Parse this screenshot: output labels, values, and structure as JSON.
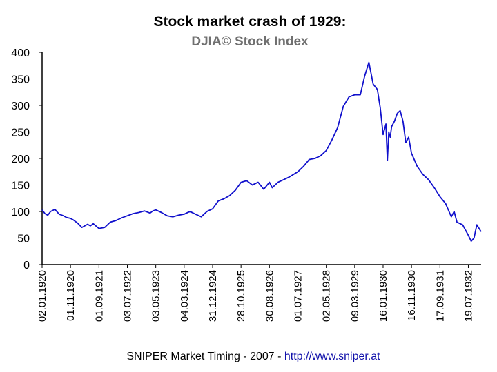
{
  "colors": {
    "line": "#1010cc",
    "subtitle": "#707070",
    "link": "#1010aa",
    "axis": "#000000"
  },
  "footer": {
    "text": "SNIPER Market Timing - 2007 - ",
    "link": "http://www.sniper.at"
  },
  "chart_data": {
    "type": "line",
    "title": "Stock market crash of 1929:",
    "subtitle": "DJIA©  Stock Index",
    "xlabel": "",
    "ylabel": "",
    "ylim": [
      0,
      400
    ],
    "yticks": [
      0,
      50,
      100,
      150,
      200,
      250,
      300,
      350,
      400
    ],
    "xlim": [
      0,
      15.45
    ],
    "xtick_labels": [
      "02.01.1920",
      "01.11.1920",
      "01.09.1921",
      "03.07.1922",
      "03.05.1923",
      "04.03.1924",
      "31.12.1924",
      "28.10.1925",
      "30.08.1926",
      "01.07.1927",
      "02.05.1928",
      "09.03.1929",
      "16.01.1930",
      "16.11.1930",
      "17.09.1931",
      "19.07.1932"
    ],
    "series": [
      {
        "name": "DJIA",
        "x": [
          0.0,
          0.1,
          0.2,
          0.3,
          0.45,
          0.6,
          0.75,
          0.85,
          1.0,
          1.1,
          1.25,
          1.4,
          1.6,
          1.7,
          1.8,
          2.0,
          2.2,
          2.4,
          2.6,
          2.8,
          3.0,
          3.2,
          3.4,
          3.6,
          3.8,
          3.9,
          4.0,
          4.2,
          4.4,
          4.6,
          4.8,
          5.0,
          5.2,
          5.4,
          5.6,
          5.8,
          6.0,
          6.2,
          6.4,
          6.6,
          6.8,
          7.0,
          7.2,
          7.4,
          7.6,
          7.8,
          8.0,
          8.1,
          8.3,
          8.5,
          8.7,
          9.0,
          9.2,
          9.4,
          9.6,
          9.8,
          10.0,
          10.2,
          10.4,
          10.6,
          10.8,
          11.0,
          11.2,
          11.35,
          11.5,
          11.65,
          11.8,
          11.9,
          12.0,
          12.1,
          12.15,
          12.2,
          12.25,
          12.3,
          12.4,
          12.5,
          12.6,
          12.7,
          12.8,
          12.9,
          13.0,
          13.2,
          13.4,
          13.6,
          13.8,
          14.0,
          14.2,
          14.4,
          14.5,
          14.6,
          14.8,
          15.0,
          15.1,
          15.2,
          15.3,
          15.45
        ],
        "values": [
          103,
          96,
          93,
          100,
          104,
          95,
          92,
          89,
          87,
          84,
          78,
          70,
          76,
          73,
          77,
          68,
          70,
          80,
          83,
          88,
          92,
          96,
          98,
          101,
          97,
          101,
          103,
          98,
          92,
          90,
          93,
          95,
          100,
          95,
          90,
          100,
          105,
          120,
          124,
          130,
          140,
          155,
          158,
          150,
          155,
          142,
          155,
          145,
          155,
          160,
          165,
          175,
          185,
          198,
          200,
          205,
          215,
          235,
          258,
          298,
          316,
          320,
          320,
          355,
          381,
          340,
          330,
          295,
          245,
          265,
          196,
          250,
          240,
          260,
          270,
          285,
          290,
          270,
          230,
          240,
          210,
          185,
          170,
          160,
          145,
          128,
          115,
          90,
          100,
          80,
          75,
          55,
          44,
          50,
          75,
          62
        ]
      }
    ]
  }
}
